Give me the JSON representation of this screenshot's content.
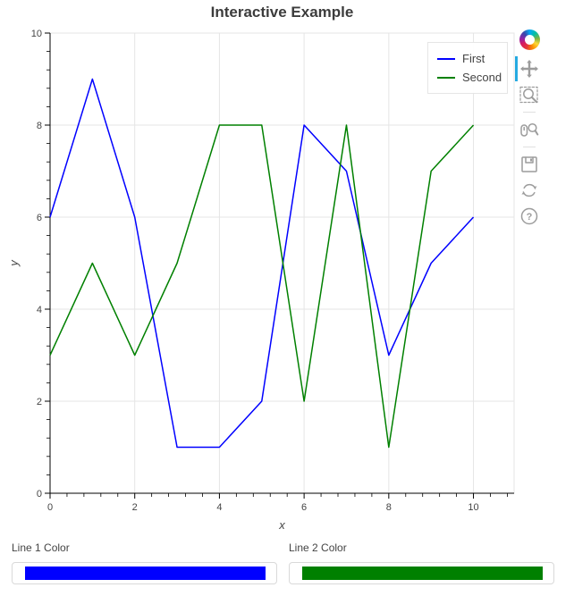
{
  "chart_data": {
    "type": "line",
    "title": "Interactive Example",
    "xlabel": "x",
    "ylabel": "y",
    "x": [
      0,
      1,
      2,
      3,
      4,
      5,
      6,
      7,
      8,
      9,
      10
    ],
    "series": [
      {
        "name": "First",
        "color": "#0000ff",
        "values": [
          6,
          9,
          6,
          1,
          1,
          2,
          8,
          7,
          3,
          5,
          6
        ]
      },
      {
        "name": "Second",
        "color": "#008000",
        "values": [
          3,
          5,
          3,
          5,
          8,
          8,
          2,
          8,
          1,
          7,
          8
        ]
      }
    ],
    "xlim": [
      0,
      10.96
    ],
    "ylim": [
      0,
      10
    ],
    "x_ticks": [
      0,
      2,
      4,
      6,
      8,
      10
    ],
    "y_ticks": [
      0,
      2,
      4,
      6,
      8,
      10
    ],
    "minor_tick_step": 0.4,
    "grid": true,
    "legend_position": "top_right"
  },
  "toolbar": {
    "logo": "bokeh-logo",
    "active_color": "#26aae1",
    "tools": [
      {
        "name": "pan",
        "active": true
      },
      {
        "name": "box-zoom",
        "active": false
      },
      {
        "name": "wheel-zoom",
        "active": false
      },
      {
        "name": "save",
        "active": false
      },
      {
        "name": "reset",
        "active": false
      },
      {
        "name": "help",
        "active": false
      }
    ]
  },
  "widgets": [
    {
      "label": "Line 1 Color",
      "value": "#0000ff"
    },
    {
      "label": "Line 2 Color",
      "value": "#008000"
    }
  ],
  "colors": {
    "grid": "#e5e5e5",
    "axis": "#000000",
    "tick_label": "#444444",
    "axis_label": "#444444",
    "title": "#3c3c3c",
    "icon": "#9c9c9c"
  }
}
